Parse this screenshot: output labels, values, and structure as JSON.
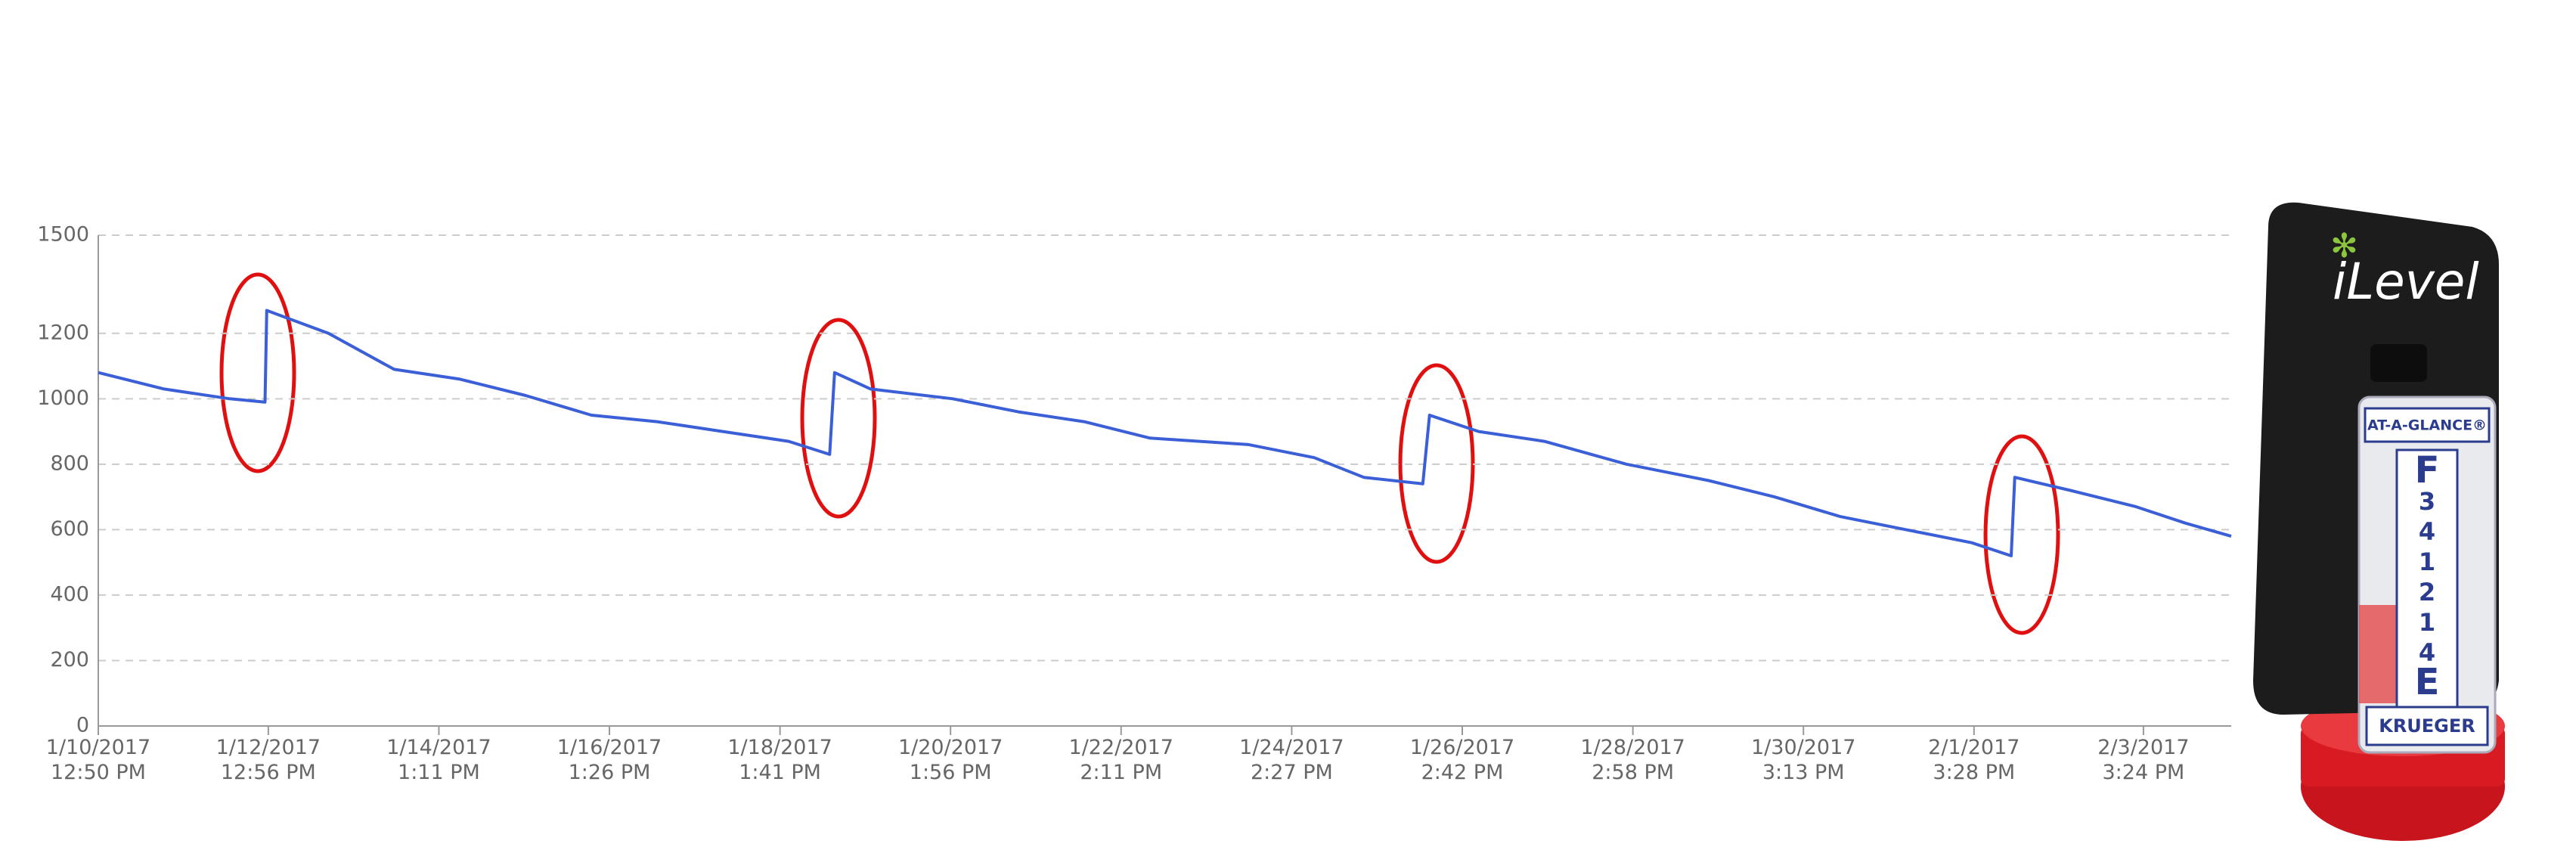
{
  "chart_data": {
    "type": "line",
    "color": "#3b5fd6",
    "x": [
      "2017-01-10 12:50",
      "2017-01-11 07:26",
      "2017-01-12 02:02",
      "2017-01-12 12:00",
      "2017-01-12 12:30",
      "2017-01-13 05:56",
      "2017-01-14 00:32",
      "2017-01-14 19:08",
      "2017-01-15 13:44",
      "2017-01-16 08:20",
      "2017-01-17 02:56",
      "2017-01-17 21:32",
      "2017-01-18 16:08",
      "2017-01-19 03:44",
      "2017-01-19 05:08",
      "2017-01-19 15:20",
      "2017-01-20 14:32",
      "2017-01-21 09:08",
      "2017-01-22 03:44",
      "2017-01-22 22:20",
      "2017-01-24 02:14",
      "2017-01-24 20:50",
      "2017-01-25 10:50",
      "2017-01-26 03:32",
      "2017-01-26 05:26",
      "2017-01-26 19:20",
      "2017-01-27 13:56",
      "2017-01-28 13:14",
      "2017-01-29 12:26",
      "2017-01-30 07:02",
      "2017-01-31 01:38",
      "2017-01-31 20:14",
      "2017-02-01 14:50",
      "2017-02-02 02:00",
      "2017-02-02 03:00",
      "2017-02-02 18:44",
      "2017-02-03 13:20",
      "2017-02-04 03:14",
      "2017-02-04 16:14"
    ],
    "values": [
      1080,
      1030,
      1000,
      990,
      1270,
      1200,
      1090,
      1060,
      1010,
      950,
      930,
      900,
      870,
      830,
      1080,
      1030,
      1000,
      960,
      930,
      880,
      860,
      820,
      760,
      740,
      950,
      900,
      870,
      800,
      750,
      700,
      640,
      600,
      560,
      520,
      760,
      720,
      670,
      620,
      580
    ],
    "xlim": [
      "2017-01-10 12:50",
      "2017-02-04 16:14"
    ],
    "xticks": [
      {
        "value": "2017-01-10 12:50",
        "label": "1/10/2017\n12:50 PM"
      },
      {
        "value": "2017-01-12 12:56",
        "label": "1/12/2017\n12:56 PM"
      },
      {
        "value": "2017-01-14 13:11",
        "label": "1/14/2017\n1:11 PM"
      },
      {
        "value": "2017-01-16 13:26",
        "label": "1/16/2017\n1:26 PM"
      },
      {
        "value": "2017-01-18 13:41",
        "label": "1/18/2017\n1:41 PM"
      },
      {
        "value": "2017-01-20 13:56",
        "label": "1/20/2017\n1:56 PM"
      },
      {
        "value": "2017-01-22 14:11",
        "label": "1/22/2017\n2:11 PM"
      },
      {
        "value": "2017-01-24 14:27",
        "label": "1/24/2017\n2:27 PM"
      },
      {
        "value": "2017-01-26 14:42",
        "label": "1/26/2017\n2:42 PM"
      },
      {
        "value": "2017-01-28 14:58",
        "label": "1/28/2017\n2:58 PM"
      },
      {
        "value": "2017-01-30 15:13",
        "label": "1/30/2017\n3:13 PM"
      },
      {
        "value": "2017-02-01 15:28",
        "label": "2/1/2017\n3:28 PM"
      },
      {
        "value": "2017-02-03 15:24",
        "label": "2/3/2017\n3:24 PM"
      }
    ],
    "ylim": [
      0,
      1500
    ],
    "yticks": [
      0,
      200,
      400,
      600,
      800,
      1000,
      1200,
      1500
    ],
    "grid": true
  },
  "device": {
    "brand": "iLevel",
    "tube_label": "AT-A-GLANCE®",
    "scale": [
      "F",
      "3",
      "4",
      "1",
      "2",
      "1",
      "4",
      "E"
    ],
    "maker": "KRUEGER"
  }
}
